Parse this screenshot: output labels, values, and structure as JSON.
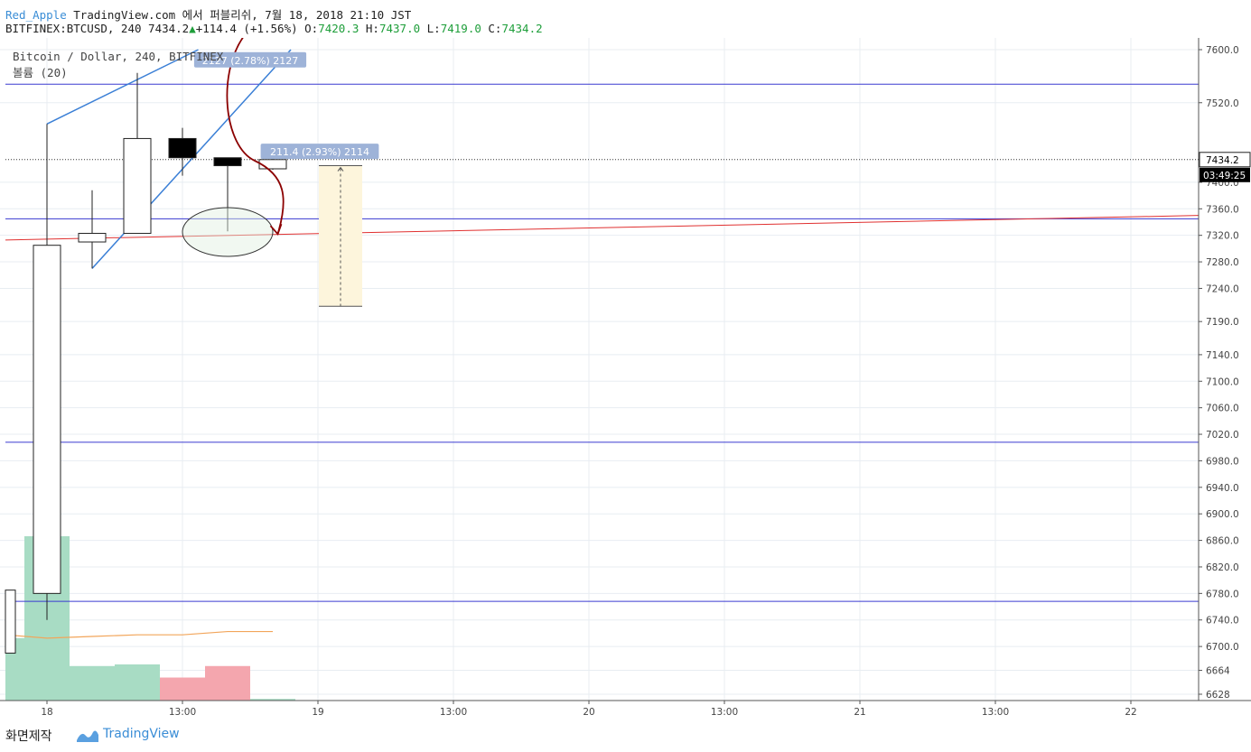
{
  "header": {
    "author": "Red_Apple",
    "published": "TradingView.com 에서 퍼블리쉬, 7월 18, 2018 21:10 JST",
    "symbol_line": "BITFINEX:BTCUSD, 240 7434.2",
    "change_arrow": "▲",
    "change": "+114.4 (+1.56%)",
    "o_label": "O:",
    "o_val": "7420.3",
    "h_label": "H:",
    "h_val": "7437.0",
    "l_label": "L:",
    "l_val": "7419.0",
    "c_label": "C:",
    "c_val": "7434.2"
  },
  "legend": {
    "symbol": "Bitcoin / Dollar, 240, BITFINEX",
    "volume": "볼륨 (20)"
  },
  "footer": {
    "snapshot_label": "화면제작",
    "brand": "TradingView"
  },
  "colors": {
    "grid": "#e8edf2",
    "hline": "#3a3ad0",
    "redline": "#e03030",
    "trend": "#3a7fd6",
    "arrow": "#8b0000",
    "vol_up": "#a8dcc4",
    "vol_down": "#f4a6ae",
    "vol_ma": "#f2a55a",
    "measure_label": "#9eb3d8",
    "measure_box": "#fdf5dc"
  },
  "chart_data": {
    "type": "candlestick",
    "symbol": "BITFINEX:BTCUSD",
    "interval": "240",
    "ylim": [
      6610,
      7620
    ],
    "y_ticks": [
      7600.0,
      7520.0,
      7434.2,
      7400.0,
      7360.0,
      7320.0,
      7280.0,
      7240.0,
      7190.0,
      7140.0,
      7100.0,
      7060.0,
      7020.0,
      6980.0,
      6940.0,
      6900.0,
      6860.0,
      6820.0,
      6780.0,
      6740.0,
      6700.0,
      6664.0,
      6628.0
    ],
    "x_ticks": [
      "18",
      "13:00",
      "19",
      "13:00",
      "20",
      "13:00",
      "21",
      "13:00",
      "22"
    ],
    "last_price": "7434.2",
    "countdown": "03:49:25",
    "candles": [
      {
        "bar": -1,
        "open": 6690,
        "high": 6785,
        "low": 6690,
        "close": 6785
      },
      {
        "bar": 0,
        "open": 6780,
        "high": 7488,
        "low": 6740,
        "close": 7305
      },
      {
        "bar": 1,
        "open": 7310,
        "high": 7388,
        "low": 7270,
        "close": 7323
      },
      {
        "bar": 2,
        "open": 7323,
        "high": 7565,
        "low": 7323,
        "close": 7466
      },
      {
        "bar": 3,
        "open": 7466,
        "high": 7482,
        "low": 7410,
        "close": 7437
      },
      {
        "bar": 4,
        "open": 7437,
        "high": 7437,
        "low": 7326,
        "close": 7425
      },
      {
        "bar": 5,
        "open": 7420.3,
        "high": 7437.0,
        "low": 7419.0,
        "close": 7434.2
      }
    ],
    "volume": {
      "bars": [
        {
          "bar": -1,
          "rel": 0.38,
          "dir": "up"
        },
        {
          "bar": 0,
          "rel": 1.0,
          "dir": "up"
        },
        {
          "bar": 1,
          "rel": 0.21,
          "dir": "up"
        },
        {
          "bar": 2,
          "rel": 0.22,
          "dir": "up"
        },
        {
          "bar": 3,
          "rel": 0.14,
          "dir": "down"
        },
        {
          "bar": 4,
          "rel": 0.21,
          "dir": "down"
        },
        {
          "bar": 5,
          "rel": 0.01,
          "dir": "up"
        }
      ],
      "ma_rel": [
        0.4,
        0.38,
        0.39,
        0.4,
        0.4,
        0.42,
        0.42
      ]
    },
    "horizontal_lines": [
      7548,
      7345,
      7008,
      6768
    ],
    "sloped_line": {
      "from": {
        "bar": -1,
        "price": 7313
      },
      "to": {
        "bar": 25.5,
        "price": 7350
      }
    },
    "channel_lines": [
      {
        "from": {
          "bar": 0,
          "price": 7488
        },
        "to": {
          "bar": 3.35,
          "price": 7600
        }
      },
      {
        "from": {
          "bar": 1,
          "price": 7270
        },
        "to": {
          "bar": 5.4,
          "price": 7600
        }
      }
    ],
    "annotations": {
      "measure_top": {
        "text": "2127 (2.78%) 2127",
        "bar": 4.4,
        "price": 7584
      },
      "measure_right": {
        "text": "211.4 (2.93%) 2114",
        "bar": 6.3,
        "price": 7446
      },
      "price_range": {
        "bar_from": 6,
        "bar_to": 7,
        "price_top": 7425,
        "price_bottom": 7213
      },
      "ellipse": {
        "bar": 4,
        "price": 7325
      },
      "arrow": {
        "from_bar": 4.2,
        "to_bar": 5.05,
        "price_to": 7322
      }
    }
  }
}
